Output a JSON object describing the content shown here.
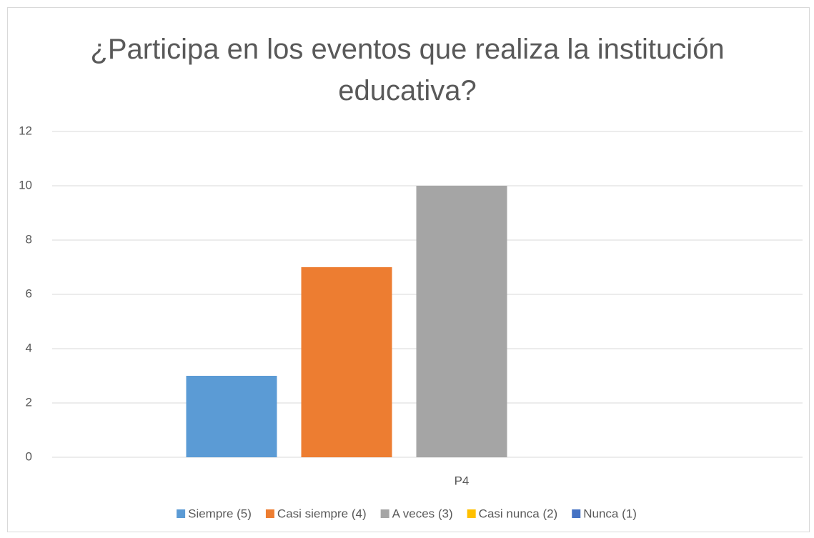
{
  "chart_data": {
    "type": "bar",
    "title": "¿Participa en los eventos que realiza la institución educativa?",
    "categories": [
      "P4"
    ],
    "series": [
      {
        "name": "Siempre (5)",
        "color": "#5b9bd5",
        "values": [
          3
        ]
      },
      {
        "name": "Casi siempre (4)",
        "color": "#ed7d31",
        "values": [
          7
        ]
      },
      {
        "name": "A veces (3)",
        "color": "#a5a5a5",
        "values": [
          10
        ]
      },
      {
        "name": "Casi nunca (2)",
        "color": "#ffc000",
        "values": [
          0
        ]
      },
      {
        "name": "Nunca (1)",
        "color": "#4472c4",
        "values": [
          0
        ]
      }
    ],
    "ylim": [
      0,
      12
    ],
    "yticks": [
      0,
      2,
      4,
      6,
      8,
      10,
      12
    ],
    "grid": true,
    "legend": "bottom"
  }
}
